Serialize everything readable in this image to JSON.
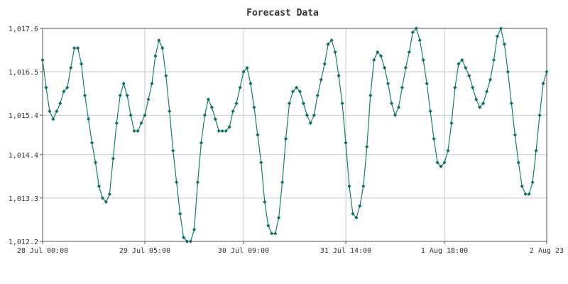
{
  "chart_data": {
    "type": "line",
    "title": "Forecast Data",
    "xlabel": "",
    "ylabel": "",
    "ylim": [
      1012.2,
      1017.6
    ],
    "y_ticks": [
      {
        "value": 1012.2,
        "label": "1,012.2"
      },
      {
        "value": 1013.3,
        "label": "1,013.3"
      },
      {
        "value": 1014.4,
        "label": "1,014.4"
      },
      {
        "value": 1015.4,
        "label": "1,015.4"
      },
      {
        "value": 1016.5,
        "label": "1,016.5"
      },
      {
        "value": 1017.6,
        "label": "1,017.6"
      }
    ],
    "x_ticks": [
      {
        "time": "2023-07-28 00:00",
        "label": "28 Jul 00:00"
      },
      {
        "time": "2023-07-29 05:00",
        "label": "29 Jul 05:00"
      },
      {
        "time": "2023-07-30 09:00",
        "label": "30 Jul 09:00"
      },
      {
        "time": "2023-07-31 14:00",
        "label": "31 Jul 14:00"
      },
      {
        "time": "2023-08-01 18:00",
        "label": "1 Aug 18:00"
      },
      {
        "time": "2023-08-02 23:00",
        "label": "2 Aug 23"
      }
    ],
    "grid": true,
    "legend": "none",
    "colors": {
      "line": "#1a7a6e",
      "marker": "#0f6e62",
      "grid": "#c8c8c8",
      "axis": "#555555"
    },
    "series": [
      {
        "start": "2023-07-28 00:00",
        "interval_hours": 1,
        "values": [
          1016.8,
          1016.1,
          1015.5,
          1015.3,
          1015.5,
          1015.7,
          1016.0,
          1016.1,
          1016.6,
          1017.1,
          1017.1,
          1016.7,
          1015.9,
          1015.3,
          1014.7,
          1014.2,
          1013.6,
          1013.3,
          1013.2,
          1013.4,
          1014.3,
          1015.2,
          1015.9,
          1016.2,
          1015.9,
          1015.4,
          1015.0,
          1015.0,
          1015.2,
          1015.4,
          1015.8,
          1016.2,
          1016.9,
          1017.3,
          1017.1,
          1016.4,
          1015.5,
          1014.5,
          1013.7,
          1012.9,
          1012.3,
          1012.2,
          1012.2,
          1012.5,
          1013.7,
          1014.7,
          1015.4,
          1015.8,
          1015.6,
          1015.3,
          1015.0,
          1015.0,
          1015.0,
          1015.1,
          1015.5,
          1015.7,
          1016.1,
          1016.5,
          1016.6,
          1016.2,
          1015.6,
          1014.9,
          1014.2,
          1013.2,
          1012.6,
          1012.4,
          1012.4,
          1012.8,
          1013.7,
          1014.8,
          1015.7,
          1016.0,
          1016.1,
          1016.0,
          1015.7,
          1015.4,
          1015.2,
          1015.4,
          1015.9,
          1016.3,
          1016.7,
          1017.2,
          1017.3,
          1017.0,
          1016.4,
          1015.7,
          1014.7,
          1013.6,
          1012.9,
          1012.8,
          1013.1,
          1013.6,
          1014.6,
          1015.9,
          1016.8,
          1017.0,
          1016.9,
          1016.6,
          1016.2,
          1015.7,
          1015.4,
          1015.6,
          1016.1,
          1016.6,
          1017.0,
          1017.5,
          1017.6,
          1017.3,
          1016.8,
          1016.2,
          1015.5,
          1014.8,
          1014.2,
          1014.1,
          1014.2,
          1014.5,
          1015.2,
          1016.1,
          1016.7,
          1016.8,
          1016.6,
          1016.4,
          1016.1,
          1015.8,
          1015.6,
          1015.7,
          1016.0,
          1016.3,
          1016.8,
          1017.4,
          1017.6,
          1017.2,
          1016.5,
          1015.7,
          1014.9,
          1014.2,
          1013.6,
          1013.4,
          1013.4,
          1013.7,
          1014.5,
          1015.4,
          1016.2,
          1016.5
        ]
      }
    ]
  }
}
